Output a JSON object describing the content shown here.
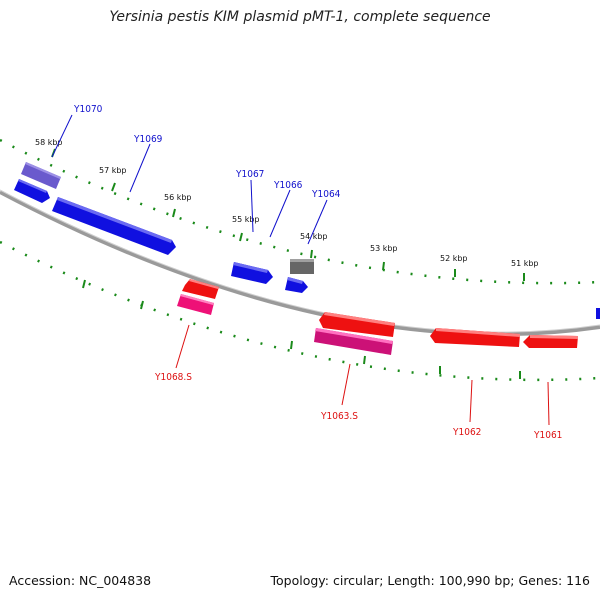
{
  "title": "Yersinia pestis KIM plasmid pMT-1, complete sequence",
  "footer": {
    "accession": "Accession: NC_004838",
    "summary": "Topology: circular; Length: 100,990 bp; Genes: 116"
  },
  "colors": {
    "backbone": "#7a7a7a",
    "forward": "#1010e0",
    "reverse": "#ee1111",
    "label_forward": "#1010cc",
    "label_reverse": "#dd1111",
    "tick": "#1a8a1a"
  },
  "scale": {
    "ticks": [
      "58 kbp",
      "57 kbp",
      "56 kbp",
      "55 kbp",
      "54 kbp",
      "53 kbp",
      "52 kbp",
      "51 kbp"
    ]
  },
  "genes": [
    {
      "label": "Y1070",
      "strand": "+",
      "color": "#6a5acd"
    },
    {
      "label": "Y1069",
      "strand": "+",
      "color": "#1010e0"
    },
    {
      "label": "Y1067",
      "strand": "+",
      "color": "#1010e0"
    },
    {
      "label": "Y1066",
      "strand": "+",
      "color": "#1010e0"
    },
    {
      "label": "Y1064",
      "strand": "+",
      "color": "#666666"
    },
    {
      "label": "Y1068.S",
      "strand": "-",
      "color": "#ee1177"
    },
    {
      "label": "Y1063.S",
      "strand": "-",
      "color": "#ee1177"
    },
    {
      "label": "Y1062",
      "strand": "-",
      "color": "#ee1111"
    },
    {
      "label": "Y1061",
      "strand": "-",
      "color": "#ee1111"
    }
  ]
}
